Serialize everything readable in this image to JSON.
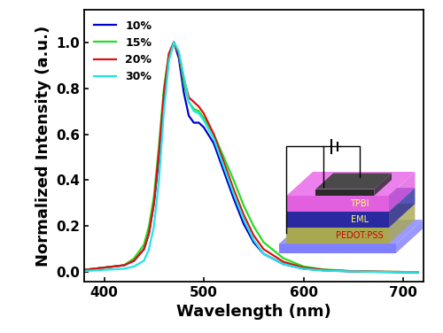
{
  "chart_data": {
    "type": "line",
    "x_label": "Wavelength (nm)",
    "y_label": "Normalized Intensity (a.u.)",
    "x": [
      380,
      400,
      420,
      430,
      440,
      445,
      450,
      455,
      460,
      465,
      470,
      475,
      480,
      485,
      490,
      495,
      500,
      510,
      520,
      530,
      540,
      550,
      560,
      580,
      600,
      620,
      650,
      680,
      700,
      715
    ],
    "series": [
      {
        "name": "10%",
        "color": "#0000cc",
        "values": [
          0.01,
          0.02,
          0.03,
          0.05,
          0.1,
          0.17,
          0.3,
          0.5,
          0.75,
          0.93,
          1.0,
          0.93,
          0.78,
          0.68,
          0.65,
          0.65,
          0.63,
          0.56,
          0.44,
          0.32,
          0.21,
          0.13,
          0.08,
          0.035,
          0.015,
          0.008,
          0.003,
          0.001,
          0.0,
          0.0
        ]
      },
      {
        "name": "15%",
        "color": "#22dd22",
        "values": [
          0.01,
          0.02,
          0.03,
          0.06,
          0.12,
          0.2,
          0.33,
          0.55,
          0.8,
          0.95,
          1.0,
          0.95,
          0.82,
          0.74,
          0.71,
          0.7,
          0.67,
          0.6,
          0.5,
          0.4,
          0.29,
          0.2,
          0.13,
          0.06,
          0.025,
          0.012,
          0.004,
          0.002,
          0.001,
          0.0
        ]
      },
      {
        "name": "20%",
        "color": "#dd1111",
        "values": [
          0.01,
          0.02,
          0.03,
          0.05,
          0.1,
          0.17,
          0.3,
          0.52,
          0.78,
          0.95,
          1.0,
          0.95,
          0.84,
          0.76,
          0.74,
          0.72,
          0.69,
          0.6,
          0.48,
          0.36,
          0.25,
          0.16,
          0.1,
          0.045,
          0.02,
          0.01,
          0.004,
          0.002,
          0.001,
          0.0
        ]
      },
      {
        "name": "30%",
        "color": "#22e5e5",
        "values": [
          0.005,
          0.01,
          0.015,
          0.025,
          0.05,
          0.1,
          0.2,
          0.4,
          0.7,
          0.92,
          1.0,
          0.96,
          0.85,
          0.74,
          0.7,
          0.69,
          0.66,
          0.58,
          0.46,
          0.34,
          0.23,
          0.14,
          0.08,
          0.035,
          0.015,
          0.007,
          0.003,
          0.001,
          0.0,
          0.0
        ]
      }
    ],
    "xlim": [
      380,
      720
    ],
    "xticks": [
      400,
      500,
      600,
      700
    ],
    "ylim": [
      -0.04,
      1.14
    ],
    "yticks": [
      {
        "value": 0,
        "label": "0.0"
      },
      0.2,
      0.4,
      0.6,
      0.8,
      {
        "value": 1,
        "label": "1.0"
      }
    ],
    "legend": "upper left",
    "annotations": [
      "TPBI",
      "EML",
      "PEDOT:PSS"
    ]
  }
}
